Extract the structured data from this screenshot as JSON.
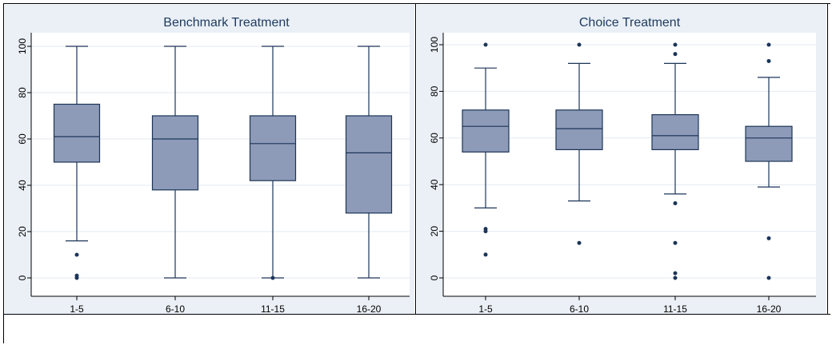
{
  "chart_data": [
    {
      "type": "box",
      "title": "Benchmark Treatment",
      "categories": [
        "1-5",
        "6-10",
        "11-15",
        "16-20"
      ],
      "ylim": [
        0,
        100
      ],
      "yticks": [
        0,
        20,
        40,
        60,
        80,
        100
      ],
      "boxes": [
        {
          "category": "1-5",
          "min": 16,
          "q1": 50,
          "median": 61,
          "q3": 75,
          "max": 100,
          "outliers": [
            10,
            1,
            0
          ]
        },
        {
          "category": "6-10",
          "min": 0,
          "q1": 38,
          "median": 60,
          "q3": 70,
          "max": 100,
          "outliers": []
        },
        {
          "category": "11-15",
          "min": 0,
          "q1": 42,
          "median": 58,
          "q3": 70,
          "max": 100,
          "outliers": [
            0
          ]
        },
        {
          "category": "16-20",
          "min": 0,
          "q1": 28,
          "median": 54,
          "q3": 70,
          "max": 100,
          "outliers": []
        }
      ],
      "box_color": "#8e9bb8",
      "line_color": "#1c3558",
      "grid": true
    },
    {
      "type": "box",
      "title": "Choice Treatment",
      "categories": [
        "1-5",
        "6-10",
        "11-15",
        "16-20"
      ],
      "ylim": [
        0,
        100
      ],
      "yticks": [
        0,
        20,
        40,
        60,
        80,
        100
      ],
      "boxes": [
        {
          "category": "1-5",
          "min": 30,
          "q1": 54,
          "median": 65,
          "q3": 72,
          "max": 90,
          "outliers": [
            100,
            21,
            20,
            10
          ]
        },
        {
          "category": "6-10",
          "min": 33,
          "q1": 55,
          "median": 64,
          "q3": 72,
          "max": 92,
          "outliers": [
            100,
            15
          ]
        },
        {
          "category": "11-15",
          "min": 36,
          "q1": 55,
          "median": 61,
          "q3": 70,
          "max": 92,
          "outliers": [
            100,
            96,
            32,
            15,
            2,
            0
          ]
        },
        {
          "category": "16-20",
          "min": 39,
          "q1": 50,
          "median": 60,
          "q3": 65,
          "max": 86,
          "outliers": [
            100,
            93,
            17,
            0
          ]
        }
      ],
      "box_color": "#8e9bb8",
      "line_color": "#1c3558",
      "grid": true
    }
  ]
}
